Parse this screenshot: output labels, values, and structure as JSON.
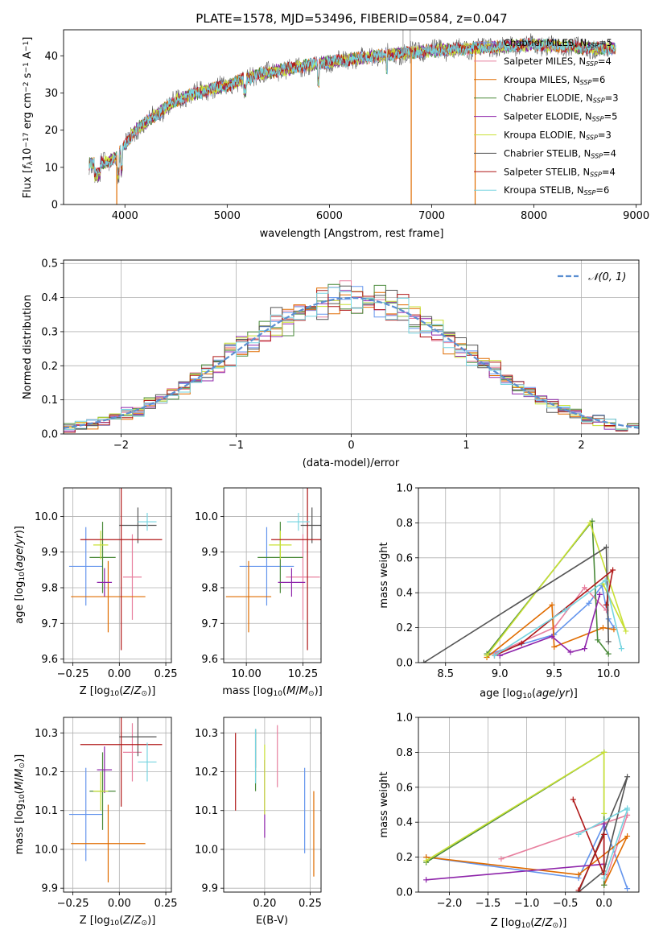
{
  "colors": [
    "#6495ed",
    "#e8809f",
    "#e06c00",
    "#4a8a3a",
    "#8e24aa",
    "#c8e034",
    "#555555",
    "#b01818",
    "#76d4e0"
  ],
  "chart_data": [
    {
      "id": "spectrum",
      "type": "line",
      "title": "PLATE=1578, MJD=53496, FIBERID=0584, z=0.047",
      "xlabel": "wavelength [Angstrom, rest frame]",
      "ylabel": "Flux [f_λ10^{-17} erg cm^{-2} s^{-1} A^{-1}]",
      "xlim": [
        3400,
        9050
      ],
      "ylim": [
        0,
        47
      ],
      "xticks": [
        4000,
        5000,
        6000,
        7000,
        8000,
        9000
      ],
      "yticks": [
        0,
        10,
        20,
        30,
        40
      ],
      "legend_position": "upper right",
      "series": [
        {
          "name": "Chabrier MILES, N_SSP=5"
        },
        {
          "name": "Salpeter MILES, N_SSP=4"
        },
        {
          "name": "Kroupa MILES, N_SSP=6"
        },
        {
          "name": "Chabrier ELODIE, N_SSP=3"
        },
        {
          "name": "Salpeter ELODIE, N_SSP=5"
        },
        {
          "name": "Kroupa ELODIE, N_SSP=3"
        },
        {
          "name": "Chabrier STELIB, N_SSP=4"
        },
        {
          "name": "Salpeter STELIB, N_SSP=4"
        },
        {
          "name": "Kroupa STELIB, N_SSP=6"
        }
      ],
      "continuum": {
        "x": [
          3650,
          3700,
          3850,
          3950,
          4100,
          4300,
          4500,
          4700,
          5000,
          5300,
          5600,
          5900,
          6200,
          6500,
          6800,
          7100,
          7400,
          7700,
          8000,
          8300,
          8600,
          8800
        ],
        "y": [
          11,
          11,
          11.5,
          14,
          20,
          24,
          28,
          30,
          32,
          35,
          36.5,
          38,
          39,
          40,
          41,
          41.5,
          42,
          42.5,
          43,
          42.5,
          42,
          42
        ]
      },
      "drop_x": [
        3920,
        6800,
        7425
      ],
      "grid": false
    },
    {
      "id": "residuals",
      "type": "step",
      "xlabel": "(data-model)/error",
      "ylabel": "Normed distribution",
      "xlim": [
        -2.5,
        2.5
      ],
      "ylim": [
        0,
        0.51
      ],
      "xticks": [
        -2,
        -1,
        0,
        1,
        2
      ],
      "yticks": [
        0.0,
        0.1,
        0.2,
        0.3,
        0.4,
        0.5
      ],
      "reference": {
        "name": "𝒩(0, 1)",
        "mu": 0,
        "sigma": 1
      },
      "legend_position": "upper right",
      "grid": true
    },
    {
      "id": "z-age",
      "type": "errorbar",
      "xlabel": "Z [log10(Z/Z⊙)]",
      "ylabel": "age  [log10(age/yr)]",
      "xlim": [
        -0.3,
        0.28
      ],
      "ylim": [
        9.59,
        10.08
      ],
      "xticks": [
        -0.25,
        0.0,
        0.25
      ],
      "yticks": [
        9.6,
        9.7,
        9.8,
        9.9,
        10.0
      ],
      "points": [
        {
          "x": -0.18,
          "xerr": 0.09,
          "y": 9.86,
          "yerr": 0.11
        },
        {
          "x": 0.07,
          "xerr": 0.05,
          "y": 9.83,
          "yerr": 0.12
        },
        {
          "x": -0.06,
          "xerr": 0.2,
          "y": 9.775,
          "yerr": 0.1
        },
        {
          "x": -0.09,
          "xerr": 0.07,
          "y": 9.885,
          "yerr": 0.1
        },
        {
          "x": -0.08,
          "xerr": 0.04,
          "y": 9.815,
          "yerr": 0.04
        },
        {
          "x": -0.1,
          "xerr": 0.04,
          "y": 9.92,
          "yerr": 0.04
        },
        {
          "x": 0.1,
          "xerr": 0.1,
          "y": 9.975,
          "yerr": 0.05
        },
        {
          "x": 0.01,
          "xerr": 0.22,
          "y": 9.935,
          "yerr": 0.31
        },
        {
          "x": 0.15,
          "xerr": 0.05,
          "y": 9.985,
          "yerr": 0.025
        }
      ],
      "grid": true
    },
    {
      "id": "mass-age",
      "type": "errorbar",
      "xlabel": "mass [log10(M/M⊙)]",
      "ylabel": "",
      "xlim": [
        9.9,
        10.33
      ],
      "ylim": [
        9.59,
        10.08
      ],
      "xticks": [
        10.0,
        10.25
      ],
      "yticks": [
        9.6,
        9.7,
        9.8,
        9.9,
        10.0
      ],
      "points": [
        {
          "x": 10.09,
          "xerr": 0.12,
          "y": 9.86,
          "yerr": 0.11
        },
        {
          "x": 10.25,
          "xerr": 0.075,
          "y": 9.83,
          "yerr": 0.12
        },
        {
          "x": 10.01,
          "xerr": 0.1,
          "y": 9.775,
          "yerr": 0.1
        },
        {
          "x": 10.15,
          "xerr": 0.1,
          "y": 9.885,
          "yerr": 0.1
        },
        {
          "x": 10.2,
          "xerr": 0.06,
          "y": 9.815,
          "yerr": 0.04
        },
        {
          "x": 10.15,
          "xerr": 0.05,
          "y": 9.92,
          "yerr": 0.04
        },
        {
          "x": 10.29,
          "xerr": 0.05,
          "y": 9.975,
          "yerr": 0.05
        },
        {
          "x": 10.27,
          "xerr": 0.16,
          "y": 9.935,
          "yerr": 0.31
        },
        {
          "x": 10.23,
          "xerr": 0.05,
          "y": 9.985,
          "yerr": 0.025
        }
      ],
      "grid": true
    },
    {
      "id": "age-weight",
      "type": "line",
      "xlabel": "age  [log10(age/yr)]",
      "ylabel": "mass weight",
      "xlim": [
        8.25,
        10.28
      ],
      "ylim": [
        0,
        1.0
      ],
      "xticks": [
        8.5,
        9.0,
        9.5,
        10.0
      ],
      "yticks": [
        0.0,
        0.2,
        0.4,
        0.6,
        0.8,
        1.0
      ],
      "series": [
        {
          "x": [
            8.9,
            9.5,
            9.82,
            9.94,
            10.0,
            10.05
          ],
          "y": [
            0.05,
            0.16,
            0.34,
            0.44,
            0.25,
            0.2
          ]
        },
        {
          "x": [
            8.95,
            9.5,
            9.78,
            9.98
          ],
          "y": [
            0.05,
            0.2,
            0.43,
            0.3
          ]
        },
        {
          "x": [
            8.88,
            9.48,
            9.5,
            9.95,
            10.05
          ],
          "y": [
            0.03,
            0.33,
            0.09,
            0.2,
            0.19
          ]
        },
        {
          "x": [
            8.88,
            9.85,
            9.9,
            10.0
          ],
          "y": [
            0.05,
            0.81,
            0.13,
            0.05
          ]
        },
        {
          "x": [
            9.0,
            9.48,
            9.65,
            9.78,
            9.92
          ],
          "y": [
            0.04,
            0.15,
            0.06,
            0.08,
            0.39
          ]
        },
        {
          "x": [
            8.88,
            9.83,
            10.16,
            9.95
          ],
          "y": [
            0.04,
            0.8,
            0.18,
            0.45
          ]
        },
        {
          "x": [
            8.3,
            9.98,
            10.0
          ],
          "y": [
            0.0,
            0.66,
            0.12
          ]
        },
        {
          "x": [
            8.95,
            9.2,
            10.04,
            9.98
          ],
          "y": [
            0.04,
            0.11,
            0.53,
            0.33
          ]
        },
        {
          "x": [
            8.95,
            9.6,
            9.97,
            10.12
          ],
          "y": [
            0.04,
            0.3,
            0.47,
            0.08
          ]
        }
      ],
      "grid": true
    },
    {
      "id": "z-mass",
      "type": "errorbar",
      "xlabel": "Z [log10(Z/Z⊙)]",
      "ylabel": "mass [log10(M/M⊙)]",
      "xlim": [
        -0.3,
        0.28
      ],
      "ylim": [
        9.89,
        10.34
      ],
      "xticks": [
        -0.25,
        0.0,
        0.25
      ],
      "yticks": [
        9.9,
        10.0,
        10.1,
        10.2,
        10.3
      ],
      "points": [
        {
          "x": -0.18,
          "xerr": 0.09,
          "y": 10.09,
          "yerr": 0.12
        },
        {
          "x": 0.07,
          "xerr": 0.05,
          "y": 10.25,
          "yerr": 0.075
        },
        {
          "x": -0.06,
          "xerr": 0.2,
          "y": 10.015,
          "yerr": 0.1
        },
        {
          "x": -0.09,
          "xerr": 0.07,
          "y": 10.15,
          "yerr": 0.1
        },
        {
          "x": -0.08,
          "xerr": 0.04,
          "y": 10.205,
          "yerr": 0.06
        },
        {
          "x": -0.1,
          "xerr": 0.04,
          "y": 10.15,
          "yerr": 0.05
        },
        {
          "x": 0.1,
          "xerr": 0.1,
          "y": 10.29,
          "yerr": 0.05
        },
        {
          "x": 0.01,
          "xerr": 0.22,
          "y": 10.27,
          "yerr": 0.16
        },
        {
          "x": 0.15,
          "xerr": 0.05,
          "y": 10.225,
          "yerr": 0.05
        }
      ],
      "grid": true
    },
    {
      "id": "ebv-mass",
      "type": "errorbar",
      "xlabel": "E(B-V)",
      "ylabel": "",
      "xlim": [
        0.155,
        0.262
      ],
      "ylim": [
        9.89,
        10.34
      ],
      "xticks": [
        0.2,
        0.25
      ],
      "yticks": [
        9.9,
        10.0,
        10.1,
        10.2,
        10.3
      ],
      "points": [
        {
          "x": 0.244,
          "y": 10.1,
          "yerr": 0.11
        },
        {
          "x": 0.214,
          "y": 10.24,
          "yerr": 0.08
        },
        {
          "x": 0.254,
          "y": 10.04,
          "yerr": 0.11
        },
        {
          "x": 0.19,
          "y": 10.23,
          "yerr": 0.08
        },
        {
          "x": 0.2,
          "y": 10.13,
          "yerr": 0.1
        },
        {
          "x": 0.2,
          "y": 10.18,
          "yerr": 0.09
        },
        {
          "x": 0.19,
          "y": 10.26,
          "yerr": 0.05
        },
        {
          "x": 0.168,
          "y": 10.2,
          "yerr": 0.1
        },
        {
          "x": 0.19,
          "y": 10.24,
          "yerr": 0.07
        }
      ],
      "grid": true
    },
    {
      "id": "z-weight",
      "type": "line",
      "xlabel": "Z [log10(Z/Z⊙)]",
      "ylabel": "mass weight",
      "xlim": [
        -2.4,
        0.45
      ],
      "ylim": [
        0,
        1.0
      ],
      "xticks": [
        -2.0,
        -1.5,
        -1.0,
        -0.5,
        0.0
      ],
      "yticks": [
        0.0,
        0.2,
        0.4,
        0.6,
        0.8,
        1.0
      ],
      "series": [
        {
          "x": [
            -2.3,
            -0.33,
            0.0,
            0.3
          ],
          "y": [
            0.2,
            0.08,
            0.39,
            0.02
          ]
        },
        {
          "x": [
            -1.33,
            0.3,
            0.0,
            0.3
          ],
          "y": [
            0.19,
            0.44,
            0.04,
            0.44
          ]
        },
        {
          "x": [
            -2.3,
            -0.33,
            0.3,
            0.0
          ],
          "y": [
            0.2,
            0.1,
            0.32,
            0.04
          ]
        },
        {
          "x": [
            -2.3,
            0.0,
            0.0
          ],
          "y": [
            0.17,
            0.8,
            0.04
          ]
        },
        {
          "x": [
            -2.3,
            0.0,
            0.0
          ],
          "y": [
            0.07,
            0.16,
            0.39
          ]
        },
        {
          "x": [
            -2.3,
            0.0,
            0.0
          ],
          "y": [
            0.18,
            0.8,
            0.45
          ]
        },
        {
          "x": [
            -0.33,
            0.0,
            0.3,
            -0.33
          ],
          "y": [
            0.0,
            0.12,
            0.66,
            0.0
          ]
        },
        {
          "x": [
            -0.4,
            0.0,
            0.0,
            -0.33
          ],
          "y": [
            0.53,
            0.1,
            0.33,
            0.01
          ]
        },
        {
          "x": [
            -0.33,
            0.3,
            0.3,
            0.0
          ],
          "y": [
            0.33,
            0.48,
            0.47,
            0.08
          ]
        }
      ],
      "grid": true
    }
  ]
}
